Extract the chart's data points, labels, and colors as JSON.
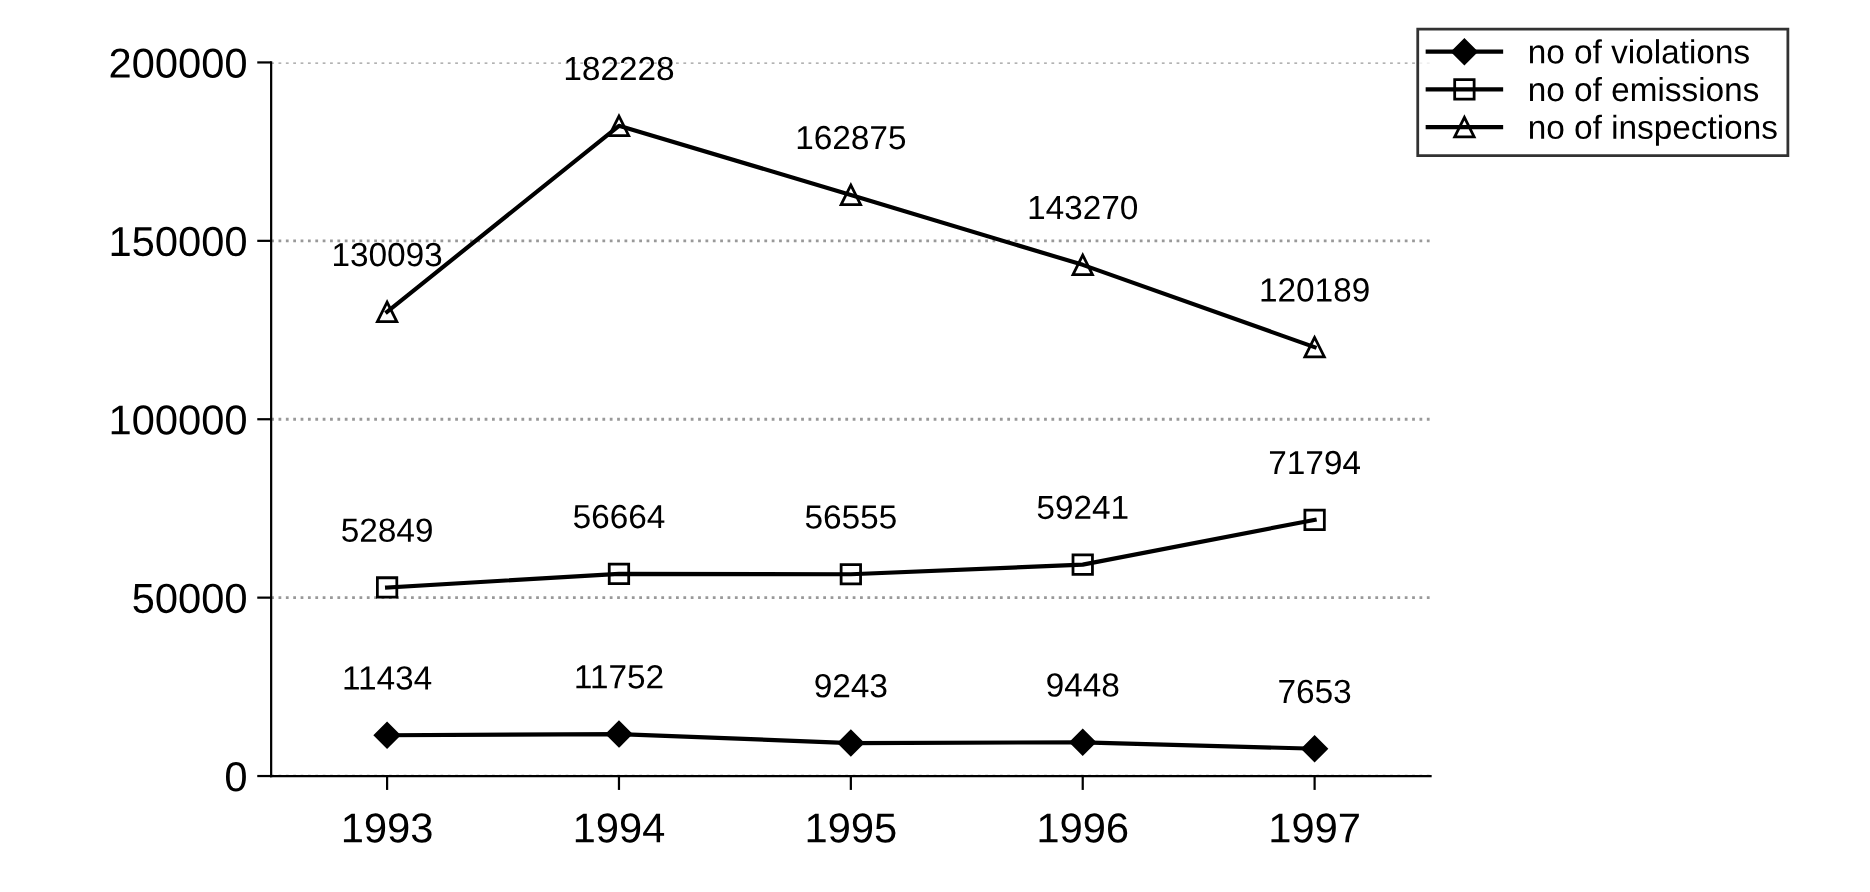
{
  "chart_data": {
    "type": "line",
    "categories": [
      "1993",
      "1994",
      "1995",
      "1996",
      "1997"
    ],
    "series": [
      {
        "name": "no of violations",
        "color": "#000000",
        "marker": "diamond",
        "values": [
          11434,
          11752,
          9243,
          9448,
          7653
        ]
      },
      {
        "name": "no of emissions",
        "color": "#000000",
        "marker": "square",
        "values": [
          52849,
          56664,
          56555,
          59241,
          71794
        ]
      },
      {
        "name": "no of inspections",
        "color": "#000000",
        "marker": "triangle",
        "values": [
          130093,
          182228,
          162875,
          143270,
          120189
        ]
      }
    ],
    "ylim": [
      0,
      200000
    ],
    "yticks": [
      0,
      50000,
      100000,
      150000,
      200000
    ],
    "grid": "y",
    "legend": "top right",
    "data_labels": true,
    "line_style": "solid"
  }
}
